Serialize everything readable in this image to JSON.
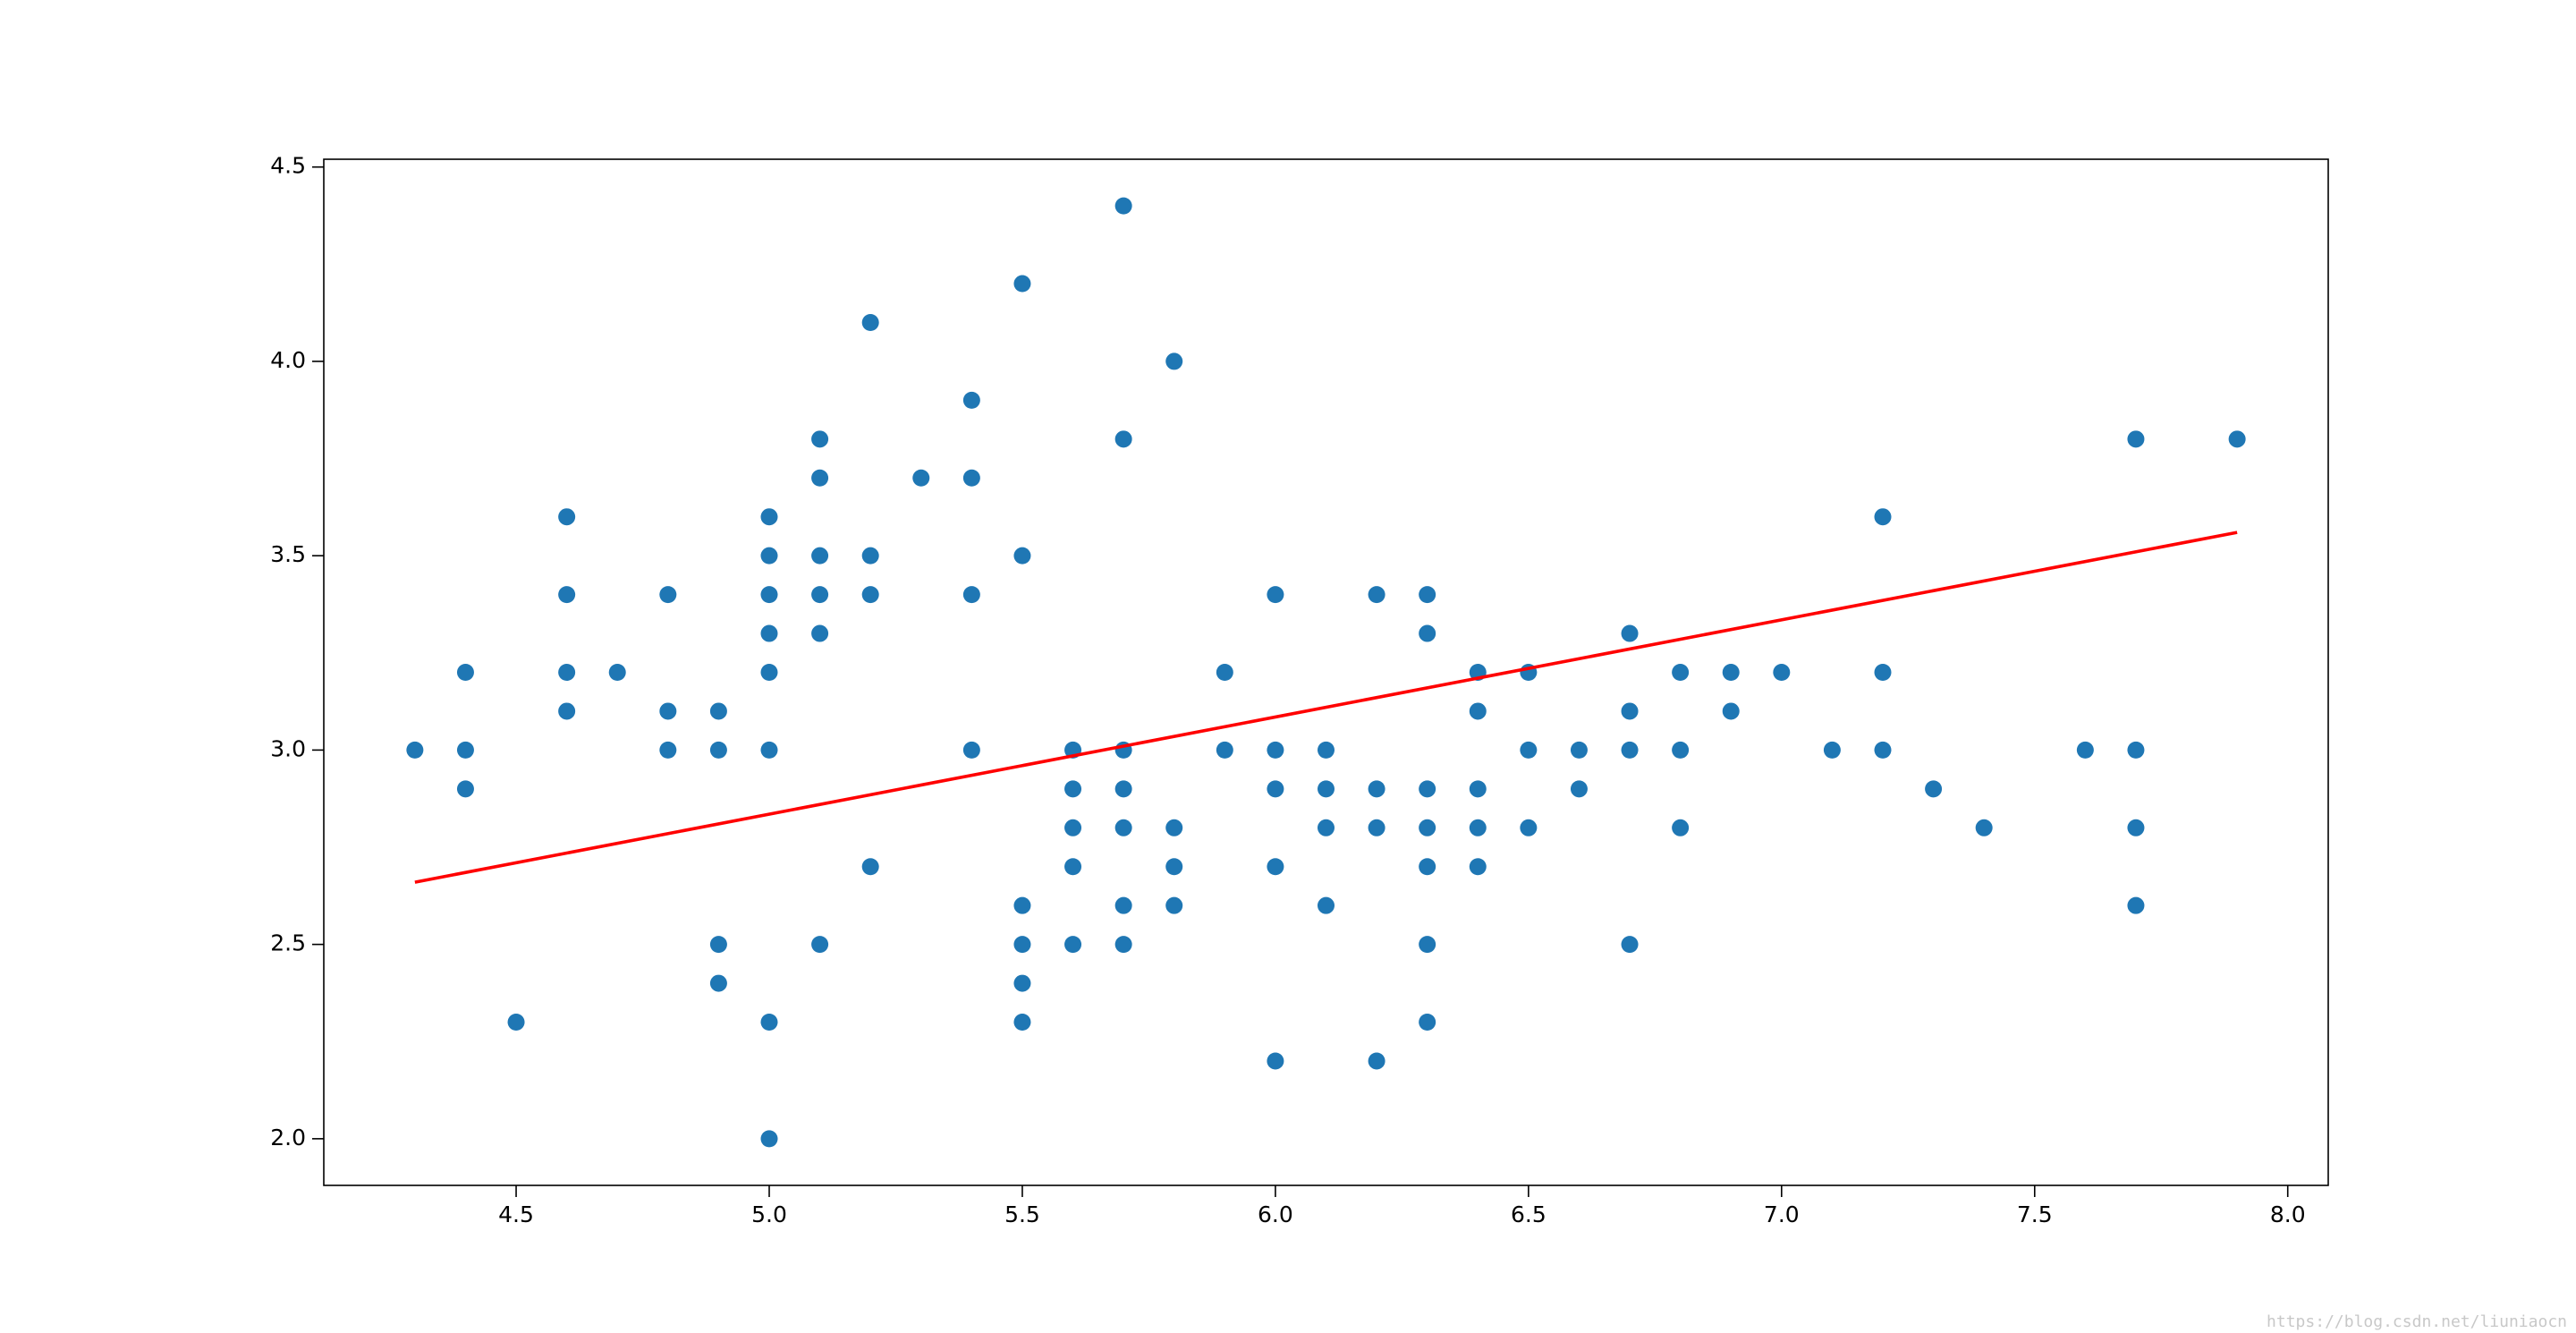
{
  "chart_data": {
    "type": "scatter",
    "xlim": [
      4.12,
      8.08
    ],
    "ylim": [
      1.88,
      4.52
    ],
    "xticks": [
      4.5,
      {
        "value": 5.0,
        "label": "5.0"
      },
      5.5,
      {
        "value": 6.0,
        "label": "6.0"
      },
      6.5,
      {
        "value": 7.0,
        "label": "7.0"
      },
      7.5,
      {
        "value": 8.0,
        "label": "8.0"
      }
    ],
    "yticks": [
      {
        "value": 2.0,
        "label": "2.0"
      },
      2.5,
      {
        "value": 3.0,
        "label": "3.0"
      },
      3.5,
      {
        "value": 4.0,
        "label": "4.0"
      },
      4.5
    ],
    "series": [
      {
        "type": "scatter",
        "color": "#1f77b4",
        "x": [
          4.3,
          4.4,
          4.4,
          4.4,
          4.5,
          4.6,
          4.6,
          4.6,
          4.6,
          4.7,
          4.8,
          4.8,
          4.8,
          4.9,
          4.9,
          4.9,
          4.9,
          5.0,
          5.0,
          5.0,
          5.0,
          5.0,
          5.0,
          5.0,
          5.0,
          5.1,
          5.1,
          5.1,
          5.1,
          5.1,
          5.1,
          5.2,
          5.2,
          5.2,
          5.2,
          5.3,
          5.4,
          5.4,
          5.4,
          5.4,
          5.5,
          5.5,
          5.5,
          5.5,
          5.5,
          5.5,
          5.6,
          5.6,
          5.6,
          5.6,
          5.6,
          5.7,
          5.7,
          5.7,
          5.7,
          5.7,
          5.7,
          5.7,
          5.8,
          5.8,
          5.8,
          5.8,
          5.9,
          5.9,
          6.0,
          6.0,
          6.0,
          6.0,
          6.0,
          6.1,
          6.1,
          6.1,
          6.1,
          6.2,
          6.2,
          6.2,
          6.2,
          6.3,
          6.3,
          6.3,
          6.3,
          6.3,
          6.3,
          6.3,
          6.4,
          6.4,
          6.4,
          6.4,
          6.4,
          6.5,
          6.5,
          6.5,
          6.6,
          6.6,
          6.7,
          6.7,
          6.7,
          6.7,
          6.8,
          6.8,
          6.8,
          6.9,
          6.9,
          7.0,
          7.1,
          7.2,
          7.2,
          7.2,
          7.3,
          7.4,
          7.6,
          7.7,
          7.7,
          7.7,
          7.7,
          7.9
        ],
        "y": [
          3.0,
          3.2,
          3.0,
          2.9,
          2.3,
          3.6,
          3.4,
          3.2,
          3.1,
          3.2,
          3.4,
          3.1,
          3.0,
          3.1,
          3.0,
          2.5,
          2.4,
          3.6,
          3.5,
          3.4,
          3.3,
          3.2,
          3.0,
          2.3,
          2.0,
          3.8,
          3.7,
          3.5,
          3.4,
          3.3,
          2.5,
          4.1,
          3.5,
          3.4,
          2.7,
          3.7,
          3.9,
          3.7,
          3.4,
          3.0,
          4.2,
          3.5,
          2.6,
          2.5,
          2.4,
          2.3,
          3.0,
          2.9,
          2.8,
          2.7,
          2.5,
          4.4,
          3.8,
          3.0,
          2.9,
          2.8,
          2.6,
          2.5,
          4.0,
          2.8,
          2.7,
          2.6,
          3.2,
          3.0,
          3.4,
          3.0,
          2.9,
          2.7,
          2.2,
          3.0,
          2.9,
          2.8,
          2.6,
          3.4,
          2.9,
          2.8,
          2.2,
          3.4,
          3.3,
          2.9,
          2.8,
          2.7,
          2.5,
          2.3,
          3.2,
          3.1,
          2.9,
          2.8,
          2.7,
          3.2,
          3.0,
          2.8,
          3.0,
          2.9,
          3.3,
          3.1,
          3.0,
          2.5,
          3.2,
          3.0,
          2.8,
          3.2,
          3.1,
          3.2,
          3.0,
          3.6,
          3.2,
          3.0,
          2.9,
          2.8,
          3.0,
          3.8,
          3.0,
          2.8,
          2.6,
          3.8
        ]
      },
      {
        "type": "line",
        "color": "#ff0000",
        "x": [
          4.3,
          7.9
        ],
        "y": [
          2.66,
          3.56
        ]
      }
    ],
    "watermark": "https://blog.csdn.net/liuniaocn"
  }
}
